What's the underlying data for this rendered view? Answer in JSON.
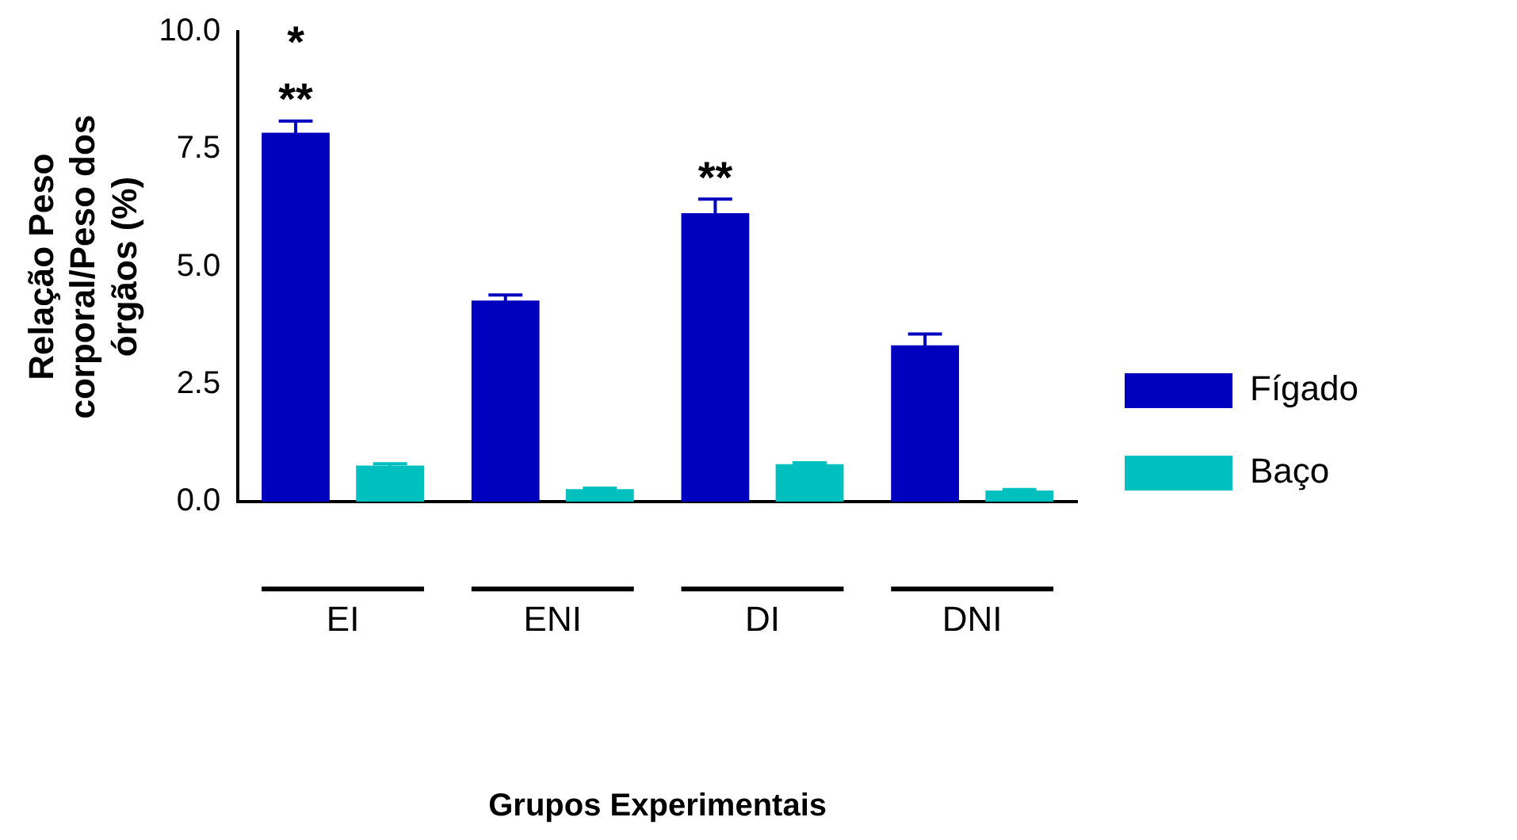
{
  "chart_data": {
    "type": "bar",
    "xlabel": "Grupos Experimentais",
    "ylabel": "Relação Peso corporal/Peso dos órgãos (%)",
    "categories": [
      "EI",
      "ENI",
      "DI",
      "DNI"
    ],
    "series": [
      {
        "name": "Fígado",
        "color": "#0000bf",
        "values": [
          7.85,
          4.28,
          6.14,
          3.33
        ],
        "errors": [
          0.25,
          0.12,
          0.3,
          0.24
        ]
      },
      {
        "name": "Baço",
        "color": "#00bfbf",
        "values": [
          0.77,
          0.27,
          0.8,
          0.24
        ],
        "errors": [
          0.04,
          0.02,
          0.03,
          0.02
        ]
      }
    ],
    "ylim": [
      0,
      10
    ],
    "yticks": [
      {
        "value": 0,
        "label": "0.0"
      },
      {
        "value": 2.5,
        "label": "2.5"
      },
      {
        "value": 5,
        "label": "5.0"
      },
      {
        "value": 7.5,
        "label": "7.5"
      },
      {
        "value": 10,
        "label": "10.0"
      }
    ],
    "annotations": [
      "**",
      "*",
      "**"
    ],
    "grid": false,
    "legend": "right"
  }
}
